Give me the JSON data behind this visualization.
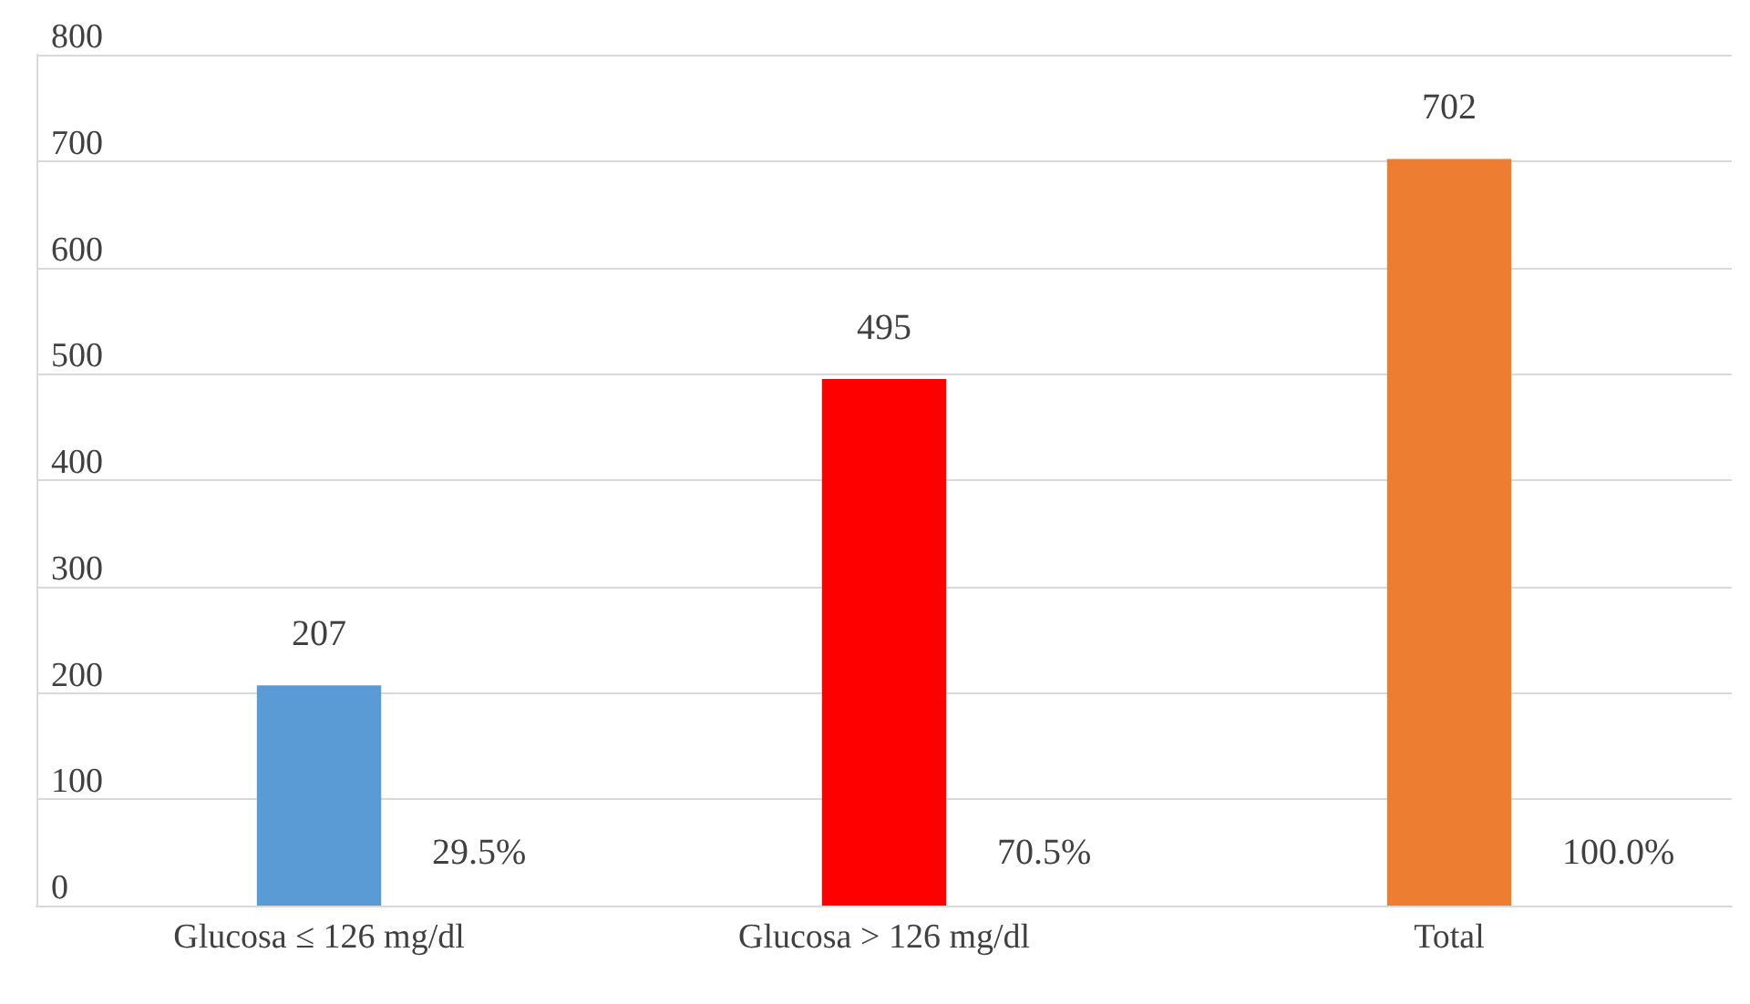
{
  "chart_data": {
    "type": "bar",
    "categories": [
      "Glucosa ≤ 126 mg/dl",
      "Glucosa > 126 mg/dl",
      "Total"
    ],
    "values": [
      207,
      495,
      702
    ],
    "colors": [
      "#5b9bd5",
      "#ff0000",
      "#ed7d31"
    ],
    "data_labels": true,
    "ylim": [
      0,
      800
    ],
    "yticks": [
      0,
      100,
      200,
      300,
      400,
      500,
      600,
      700,
      800
    ],
    "grid": "y",
    "annotations": [
      "29.5%",
      "70.5%",
      "100.0%"
    ]
  }
}
